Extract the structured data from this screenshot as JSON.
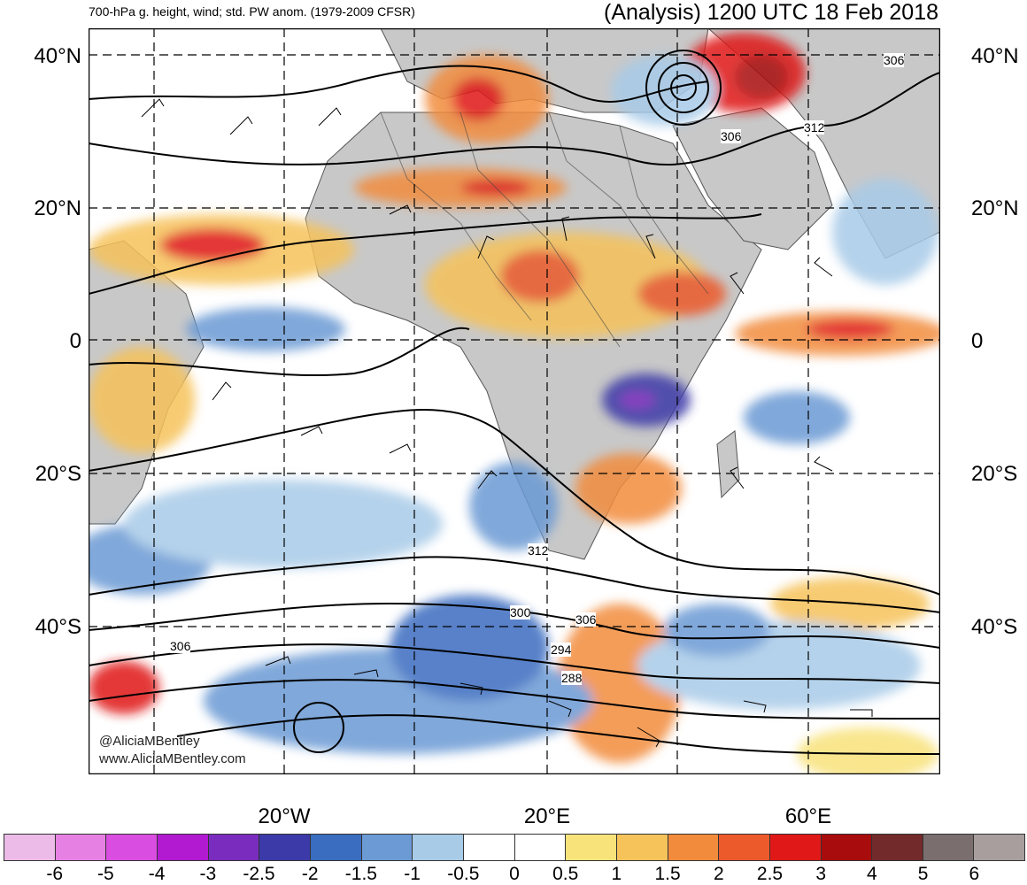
{
  "header": {
    "left_title": "700-hPa g. height, wind; std. PW anom. (1979-2009 CFSR)",
    "right_title": "(Analysis) 1200 UTC 18 Feb 2018"
  },
  "lat_labels": [
    "40°N",
    "20°N",
    "0",
    "20°S",
    "40°S"
  ],
  "lon_labels": [
    "20°W",
    "20°E",
    "60°E"
  ],
  "contour_labels": [
    "306",
    "306",
    "312",
    "312",
    "300",
    "306",
    "294",
    "288",
    "306"
  ],
  "watermark": [
    "@AliciaMBentley",
    "www.AliciaMBentley.com"
  ],
  "colorbar": {
    "ticks": [
      "-6",
      "-5",
      "-4",
      "-3",
      "-2.5",
      "-2",
      "-1.5",
      "-1",
      "-0.5",
      "0",
      "0.5",
      "1",
      "1.5",
      "2",
      "2.5",
      "3",
      "4",
      "5",
      "6"
    ],
    "colors": [
      "#ecbbe8",
      "#e680e2",
      "#d94ee0",
      "#b21ad2",
      "#7a2cbe",
      "#3c3aa8",
      "#3a6cc0",
      "#6b9ad4",
      "#a8cbe8",
      "#ffffff",
      "#ffffff",
      "#f8e27a",
      "#f6c25a",
      "#f28c3c",
      "#ec5a2c",
      "#e01818",
      "#a80c0c",
      "#722a2a",
      "#7a6e6e",
      "#a89e9e"
    ]
  },
  "colors": {
    "land": "#c8c8c8",
    "ocean": "#ffffff"
  }
}
